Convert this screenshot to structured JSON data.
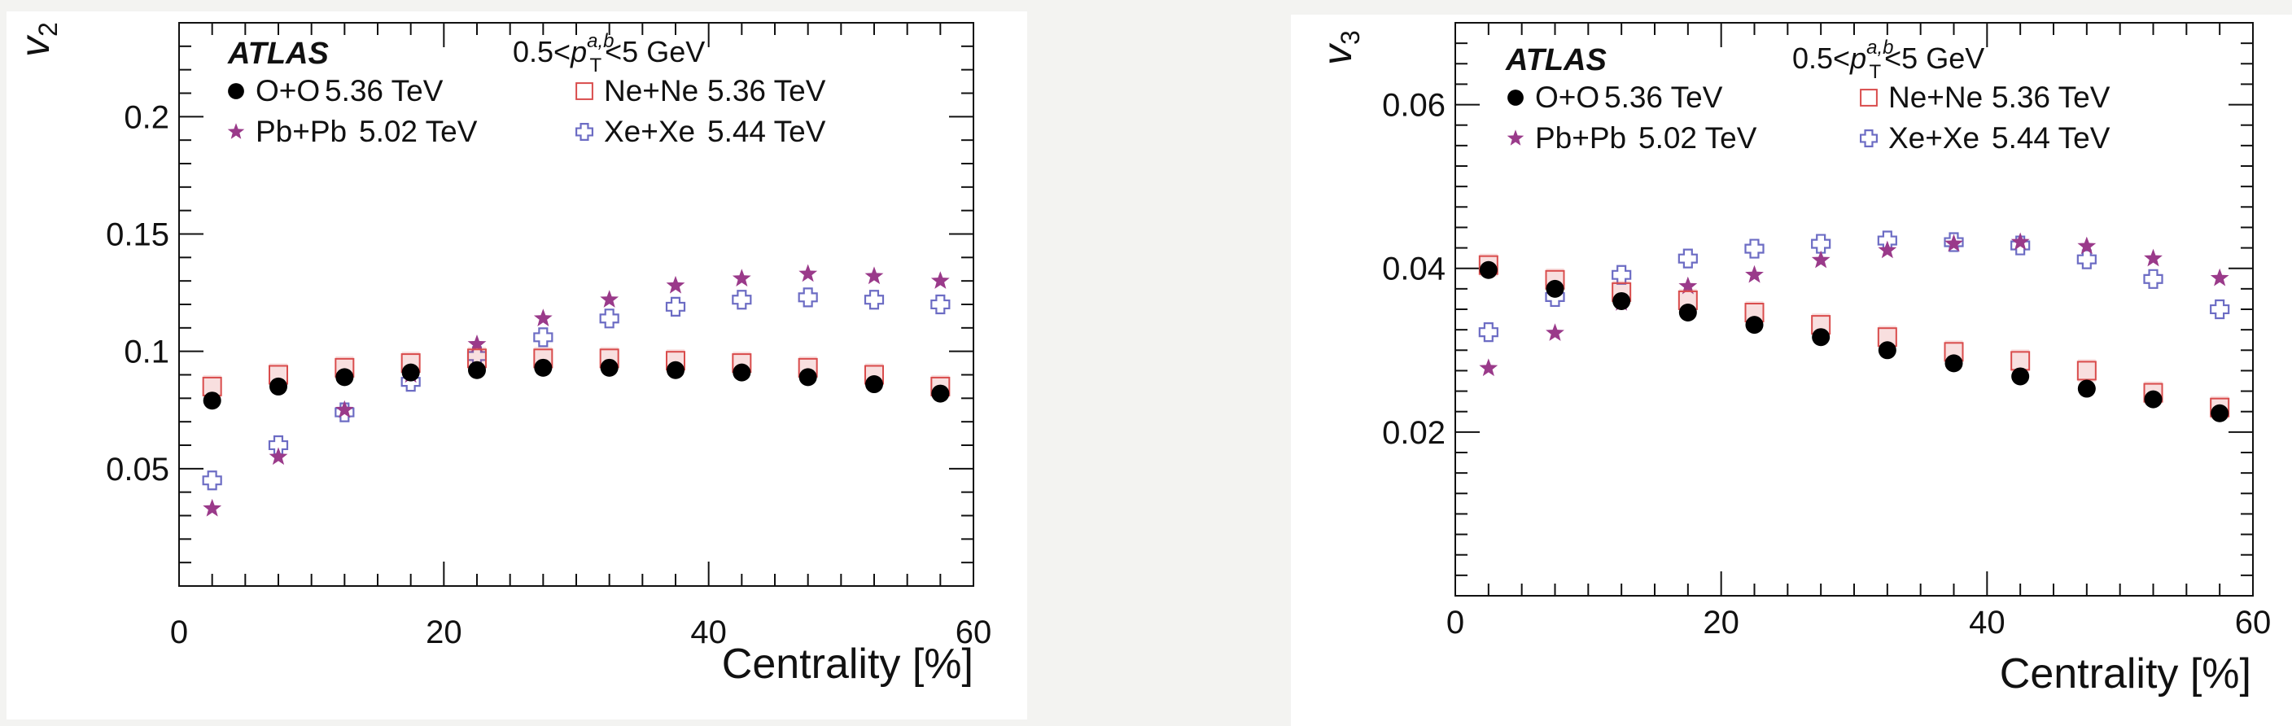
{
  "colors": {
    "OO": "#000000",
    "PbPb": "#9a3a8a",
    "NeNe": "#d94c4c",
    "XeXe": "#6c6cc4"
  },
  "chart_data": [
    {
      "type": "scatter",
      "ylabel": "v",
      "ylabel_sub": "2",
      "xlabel": "Centrality [%]",
      "xlim": [
        0,
        60
      ],
      "ylim": [
        0,
        0.24
      ],
      "x_ticks": [
        "0",
        "20",
        "40",
        "60"
      ],
      "y_ticks": [
        "0.05",
        "0.1",
        "0.15",
        "0.2"
      ],
      "y_tick_values": [
        0.05,
        0.1,
        0.15,
        0.2
      ],
      "atlas_label": "ATLAS",
      "kinematic_cut": {
        "pre": "0.5<",
        "p": "p",
        "sub": "T",
        "sup": "a,b",
        "post": "<5 GeV"
      },
      "legend": [
        {
          "key": "OO",
          "label": "O+O",
          "energy": "5.36 TeV",
          "marker": "filled-circle"
        },
        {
          "key": "NeNe",
          "label": "Ne+Ne",
          "energy": "5.36 TeV",
          "marker": "open-square"
        },
        {
          "key": "PbPb",
          "label": "Pb+Pb",
          "energy": "5.02 TeV",
          "marker": "star"
        },
        {
          "key": "XeXe",
          "label": "Xe+Xe",
          "energy": "5.44 TeV",
          "marker": "open-cross"
        }
      ],
      "x": [
        2.5,
        7.5,
        12.5,
        17.5,
        22.5,
        27.5,
        32.5,
        37.5,
        42.5,
        47.5,
        52.5,
        57.5
      ],
      "series": [
        {
          "key": "OO",
          "values": [
            0.079,
            0.085,
            0.089,
            0.091,
            0.092,
            0.093,
            0.093,
            0.092,
            0.091,
            0.089,
            0.086,
            0.082
          ]
        },
        {
          "key": "NeNe",
          "values": [
            0.085,
            0.09,
            0.093,
            0.095,
            0.097,
            0.097,
            0.097,
            0.096,
            0.095,
            0.093,
            0.09,
            0.085
          ]
        },
        {
          "key": "PbPb",
          "values": [
            0.033,
            0.055,
            0.075,
            0.09,
            0.103,
            0.114,
            0.122,
            0.128,
            0.131,
            0.133,
            0.132,
            0.13
          ]
        },
        {
          "key": "XeXe",
          "values": [
            0.045,
            0.06,
            0.074,
            0.087,
            0.098,
            0.106,
            0.114,
            0.119,
            0.122,
            0.123,
            0.122,
            0.12
          ]
        }
      ]
    },
    {
      "type": "scatter",
      "ylabel": "v",
      "ylabel_sub": "3",
      "xlabel": "Centrality [%]",
      "xlim": [
        0,
        60
      ],
      "ylim": [
        0,
        0.07
      ],
      "x_ticks": [
        "0",
        "20",
        "40",
        "60"
      ],
      "y_ticks": [
        "0.02",
        "0.04",
        "0.06"
      ],
      "y_tick_values": [
        0.02,
        0.04,
        0.06
      ],
      "atlas_label": "ATLAS",
      "kinematic_cut": {
        "pre": "0.5<",
        "p": "p",
        "sub": "T",
        "sup": "a,b",
        "post": "<5 GeV"
      },
      "legend": [
        {
          "key": "OO",
          "label": "O+O",
          "energy": "5.36 TeV",
          "marker": "filled-circle"
        },
        {
          "key": "NeNe",
          "label": "Ne+Ne",
          "energy": "5.36 TeV",
          "marker": "open-square"
        },
        {
          "key": "PbPb",
          "label": "Pb+Pb",
          "energy": "5.02 TeV",
          "marker": "star"
        },
        {
          "key": "XeXe",
          "label": "Xe+Xe",
          "energy": "5.44 TeV",
          "marker": "open-cross"
        }
      ],
      "x": [
        2.5,
        7.5,
        12.5,
        17.5,
        22.5,
        27.5,
        32.5,
        37.5,
        42.5,
        47.5,
        52.5,
        57.5
      ],
      "series": [
        {
          "key": "OO",
          "values": [
            0.0398,
            0.0375,
            0.036,
            0.0346,
            0.0331,
            0.0316,
            0.03,
            0.0284,
            0.0268,
            0.0253,
            0.024,
            0.0223
          ]
        },
        {
          "key": "NeNe",
          "values": [
            0.0404,
            0.0386,
            0.0371,
            0.0361,
            0.0346,
            0.0331,
            0.0316,
            0.0298,
            0.0287,
            0.0275,
            0.0248,
            0.023
          ]
        },
        {
          "key": "PbPb",
          "values": [
            0.0278,
            0.0321,
            0.0358,
            0.0378,
            0.0392,
            0.041,
            0.0422,
            0.043,
            0.0432,
            0.0427,
            0.0412,
            0.0388
          ]
        },
        {
          "key": "XeXe",
          "values": [
            0.0322,
            0.0365,
            0.0392,
            0.0412,
            0.0424,
            0.043,
            0.0434,
            0.0432,
            0.0428,
            0.0411,
            0.0387,
            0.035
          ]
        }
      ]
    }
  ]
}
